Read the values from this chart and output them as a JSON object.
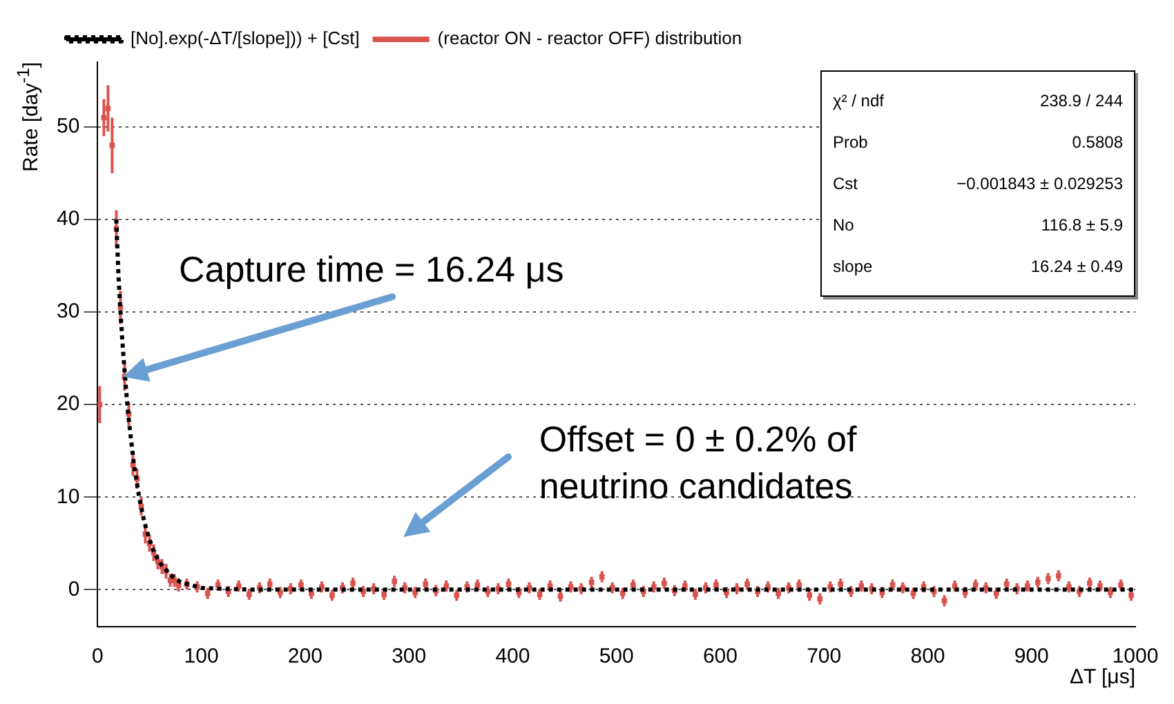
{
  "chart_data": {
    "type": "scatter",
    "xlabel": "ΔT [μs]",
    "ylabel": "Rate [day$^{-1}$]",
    "xlim": [
      0,
      1000
    ],
    "xticks": [
      0,
      100,
      200,
      300,
      400,
      500,
      600,
      700,
      800,
      900,
      1000
    ],
    "ylim": [
      -4,
      57
    ],
    "yticks": [
      0,
      10,
      20,
      30,
      40,
      50
    ],
    "grid": "y",
    "legend": "top left",
    "series": [
      {
        "name": "[No].exp(-ΔT/[slope])) + [Cst]",
        "type": "line",
        "color": "#000000",
        "line_style": "dotted",
        "x": [
          18,
          20,
          22,
          24,
          26,
          28,
          30,
          35,
          40,
          45,
          50,
          55,
          60,
          70,
          80,
          90,
          100,
          120,
          150,
          200,
          300,
          400,
          500,
          600,
          700,
          800,
          900,
          1000
        ],
        "values": [
          40,
          34.1,
          30.1,
          26.6,
          23.6,
          20.8,
          18.4,
          13.5,
          10,
          7.3,
          5.4,
          3.9,
          2.9,
          1.6,
          0.8,
          0.5,
          0.2,
          0.1,
          0,
          0,
          0,
          0,
          0,
          0,
          0,
          0,
          0,
          0
        ]
      },
      {
        "name": "(reactor ON - reactor OFF) distribution",
        "color": "#d9534f",
        "marker": "square",
        "x": [
          2,
          6,
          10,
          14,
          18,
          22,
          26,
          30,
          34,
          38,
          42,
          46,
          50,
          54,
          58,
          62,
          66,
          70,
          74,
          78,
          86,
          96,
          106,
          116,
          126,
          136,
          146,
          156,
          166,
          176,
          186,
          196,
          206,
          216,
          226,
          236,
          246,
          256,
          266,
          276,
          286,
          296,
          306,
          316,
          326,
          336,
          346,
          356,
          366,
          376,
          386,
          396,
          406,
          416,
          426,
          436,
          446,
          456,
          466,
          476,
          486,
          496,
          506,
          516,
          526,
          536,
          546,
          556,
          566,
          576,
          586,
          596,
          606,
          616,
          626,
          636,
          646,
          656,
          666,
          676,
          686,
          696,
          706,
          716,
          726,
          736,
          746,
          756,
          766,
          776,
          786,
          796,
          806,
          816,
          826,
          836,
          846,
          856,
          866,
          876,
          886,
          896,
          906,
          916,
          926,
          936,
          946,
          956,
          966,
          976,
          986,
          996
        ],
        "values": [
          20,
          51,
          52,
          48,
          39,
          30.5,
          23,
          19,
          13.5,
          12,
          9,
          6,
          5,
          4,
          3,
          2.5,
          2,
          1,
          1,
          0.5,
          0.6,
          0.3,
          -0.4,
          0.5,
          -0.2,
          0.4,
          -0.5,
          0.2,
          0.6,
          -0.3,
          0.1,
          0.5,
          -0.4,
          0.3,
          -0.6,
          0.2,
          0.7,
          -0.2,
          0.1,
          -0.5,
          0.9,
          0.2,
          -0.3,
          0.6,
          -0.1,
          0.4,
          -0.6,
          0.3,
          0.5,
          -0.2,
          0.1,
          0.6,
          -0.3,
          0.2,
          -0.5,
          0.4,
          -0.7,
          0.3,
          0.1,
          0.8,
          1.4,
          0.2,
          -0.4,
          0.5,
          -0.2,
          0.3,
          0.7,
          -0.1,
          0.4,
          -0.5,
          0.2,
          0.5,
          -0.3,
          0.1,
          0.6,
          -0.2,
          0.3,
          -0.4,
          0.2,
          0.5,
          -0.6,
          -1,
          0.3,
          0.6,
          -0.2,
          0.4,
          0.1,
          -0.3,
          0.5,
          0.2,
          -0.4,
          0.3,
          -0.2,
          -1.2,
          0.4,
          -0.3,
          0.5,
          0.2,
          -0.4,
          0.6,
          0.1,
          0.4,
          0.8,
          1.2,
          1.5,
          0.3,
          -0.2,
          0.7,
          0.4,
          -0.3,
          0.5,
          -0.6
        ],
        "errors": [
          2,
          2,
          2.5,
          3,
          2,
          1.8,
          1.5,
          1.3,
          1.2,
          1.1,
          1,
          1,
          0.9,
          0.9,
          0.8,
          0.8,
          0.8,
          0.7,
          0.7,
          0.7,
          0.6,
          0.6,
          0.6,
          0.6,
          0.6,
          0.6,
          0.6,
          0.6,
          0.6,
          0.6,
          0.6,
          0.6,
          0.6,
          0.6,
          0.6,
          0.6,
          0.6,
          0.6,
          0.6,
          0.6,
          0.6,
          0.6,
          0.6,
          0.6,
          0.6,
          0.6,
          0.6,
          0.6,
          0.6,
          0.6,
          0.6,
          0.6,
          0.6,
          0.6,
          0.6,
          0.6,
          0.6,
          0.6,
          0.6,
          0.6,
          0.6,
          0.6,
          0.6,
          0.6,
          0.6,
          0.6,
          0.6,
          0.6,
          0.6,
          0.6,
          0.6,
          0.6,
          0.6,
          0.6,
          0.6,
          0.6,
          0.6,
          0.6,
          0.6,
          0.6,
          0.6,
          0.6,
          0.6,
          0.6,
          0.6,
          0.6,
          0.6,
          0.6,
          0.6,
          0.6,
          0.6,
          0.6,
          0.6,
          0.6,
          0.6,
          0.6,
          0.6,
          0.6,
          0.6,
          0.6,
          0.6,
          0.6,
          0.6,
          0.6,
          0.6,
          0.6,
          0.6,
          0.6,
          0.6,
          0.6,
          0.6,
          0.6
        ]
      }
    ],
    "annotations": [
      {
        "text": "Capture time = 16.24 μs",
        "x": 25,
        "y": 23
      },
      "Offset = 0 ± 0.2% of neutrino candidates",
      "χ² / ndf\t238.9 / 244",
      "Prob\t0.5808",
      "Cst\t−0.001843 ± 0.029253",
      "No\t116.8 ± 5.9",
      "slope\t16.24 ± 0.49"
    ]
  }
}
